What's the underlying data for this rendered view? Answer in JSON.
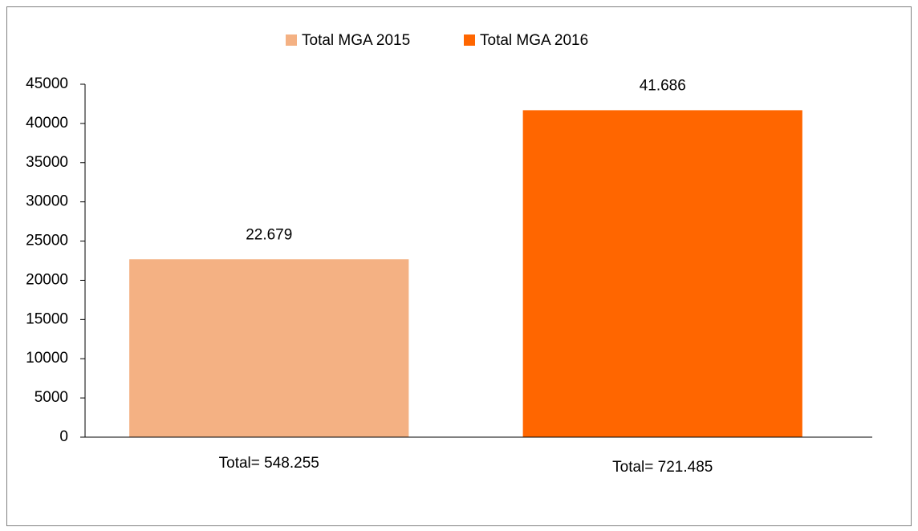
{
  "chart_data": {
    "type": "bar",
    "categories": [
      "Total= 548.255",
      "Total= 721.485"
    ],
    "values": [
      22679,
      41686
    ],
    "value_labels": [
      "22.679",
      "41.686"
    ],
    "colors": [
      "#f4b183",
      "#ff6600"
    ],
    "legend": [
      "Total MGA 2015",
      "Total MGA 2016"
    ],
    "legend_position": "top",
    "ylim": [
      0,
      45000
    ],
    "yticks": [
      0,
      5000,
      10000,
      15000,
      20000,
      25000,
      30000,
      35000,
      40000,
      45000
    ],
    "grid": false
  }
}
